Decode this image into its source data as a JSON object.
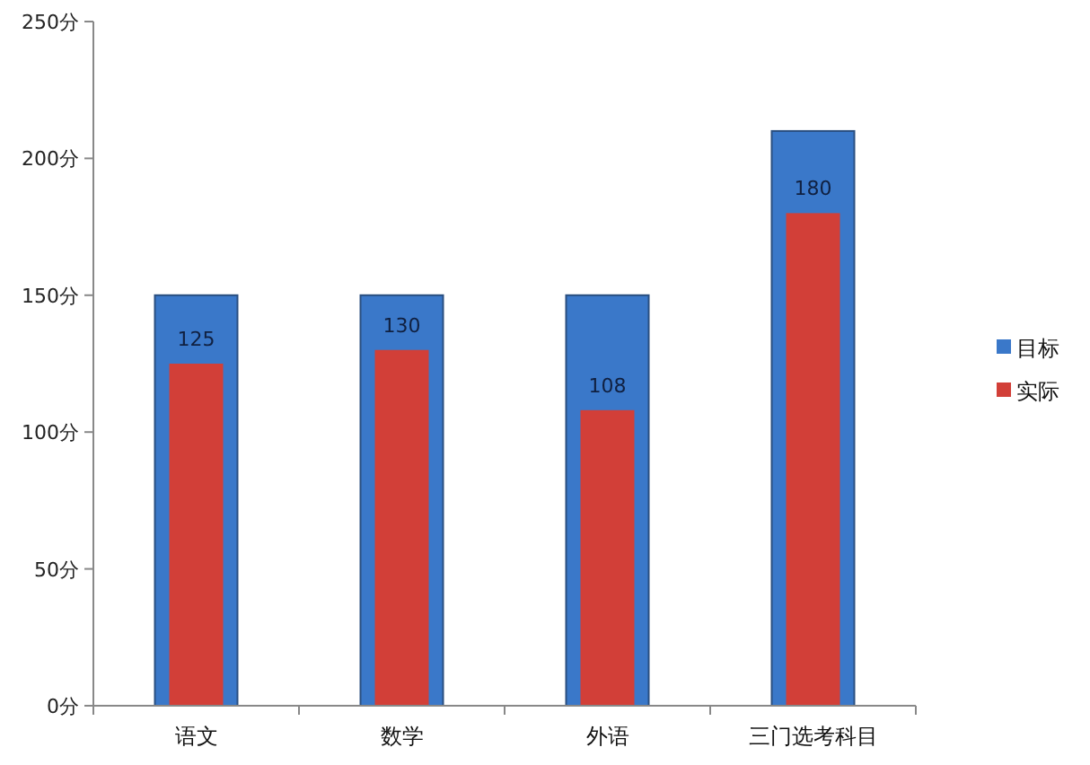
{
  "chart_data": {
    "type": "bar",
    "categories": [
      "语文",
      "数学",
      "外语",
      "三门选考科目"
    ],
    "series": [
      {
        "name": "目标",
        "color": "#3a78c9",
        "values": [
          150,
          150,
          150,
          210
        ]
      },
      {
        "name": "实际",
        "color": "#d23f38",
        "values": [
          125,
          130,
          108,
          180
        ],
        "value_labels": [
          "125",
          "130",
          "108",
          "180"
        ]
      }
    ],
    "ylim": [
      0,
      250
    ],
    "yticks": [
      {
        "value": 0,
        "label": "0分"
      },
      {
        "value": 50,
        "label": "50分"
      },
      {
        "value": 100,
        "label": "100分"
      },
      {
        "value": 150,
        "label": "150分"
      },
      {
        "value": 200,
        "label": "200分"
      },
      {
        "value": 250,
        "label": "250分"
      }
    ],
    "grid": false,
    "legend": "right"
  }
}
